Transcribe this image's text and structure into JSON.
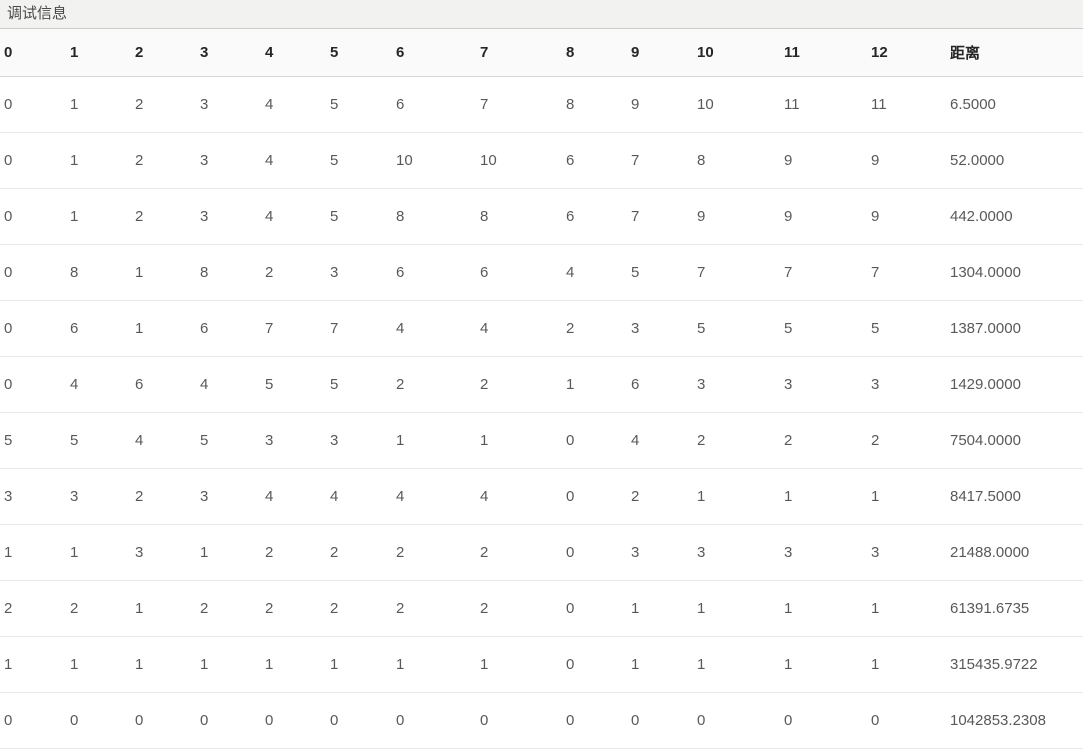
{
  "panel": {
    "title": "调试信息"
  },
  "table": {
    "headers": [
      "0",
      "1",
      "2",
      "3",
      "4",
      "5",
      "6",
      "7",
      "8",
      "9",
      "10",
      "11",
      "12",
      "距离"
    ],
    "rows": [
      {
        "values": [
          "0",
          "1",
          "2",
          "3",
          "4",
          "5",
          "6",
          "7",
          "8",
          "9",
          "10",
          "11",
          "11"
        ],
        "distance": "6.5000"
      },
      {
        "values": [
          "0",
          "1",
          "2",
          "3",
          "4",
          "5",
          "10",
          "10",
          "6",
          "7",
          "8",
          "9",
          "9"
        ],
        "distance": "52.0000"
      },
      {
        "values": [
          "0",
          "1",
          "2",
          "3",
          "4",
          "5",
          "8",
          "8",
          "6",
          "7",
          "9",
          "9",
          "9"
        ],
        "distance": "442.0000"
      },
      {
        "values": [
          "0",
          "8",
          "1",
          "8",
          "2",
          "3",
          "6",
          "6",
          "4",
          "5",
          "7",
          "7",
          "7"
        ],
        "distance": "1304.0000"
      },
      {
        "values": [
          "0",
          "6",
          "1",
          "6",
          "7",
          "7",
          "4",
          "4",
          "2",
          "3",
          "5",
          "5",
          "5"
        ],
        "distance": "1387.0000"
      },
      {
        "values": [
          "0",
          "4",
          "6",
          "4",
          "5",
          "5",
          "2",
          "2",
          "1",
          "6",
          "3",
          "3",
          "3"
        ],
        "distance": "1429.0000"
      },
      {
        "values": [
          "5",
          "5",
          "4",
          "5",
          "3",
          "3",
          "1",
          "1",
          "0",
          "4",
          "2",
          "2",
          "2"
        ],
        "distance": "7504.0000"
      },
      {
        "values": [
          "3",
          "3",
          "2",
          "3",
          "4",
          "4",
          "4",
          "4",
          "0",
          "2",
          "1",
          "1",
          "1"
        ],
        "distance": "8417.5000"
      },
      {
        "values": [
          "1",
          "1",
          "3",
          "1",
          "2",
          "2",
          "2",
          "2",
          "0",
          "3",
          "3",
          "3",
          "3"
        ],
        "distance": "21488.0000"
      },
      {
        "values": [
          "2",
          "2",
          "1",
          "2",
          "2",
          "2",
          "2",
          "2",
          "0",
          "1",
          "1",
          "1",
          "1"
        ],
        "distance": "61391.6735"
      },
      {
        "values": [
          "1",
          "1",
          "1",
          "1",
          "1",
          "1",
          "1",
          "1",
          "0",
          "1",
          "1",
          "1",
          "1"
        ],
        "distance": "315435.9722"
      },
      {
        "values": [
          "0",
          "0",
          "0",
          "0",
          "0",
          "0",
          "0",
          "0",
          "0",
          "0",
          "0",
          "0",
          "0"
        ],
        "distance": "1042853.2308"
      }
    ]
  },
  "colors": {
    "title_bg": "#f2f2f0",
    "title_text": "#4a4a4a",
    "header_bg": "#fafafa",
    "header_text": "#262626",
    "header_border": "#d7d7d7",
    "body_text": "#595959",
    "row_border": "#e9e9e9"
  }
}
